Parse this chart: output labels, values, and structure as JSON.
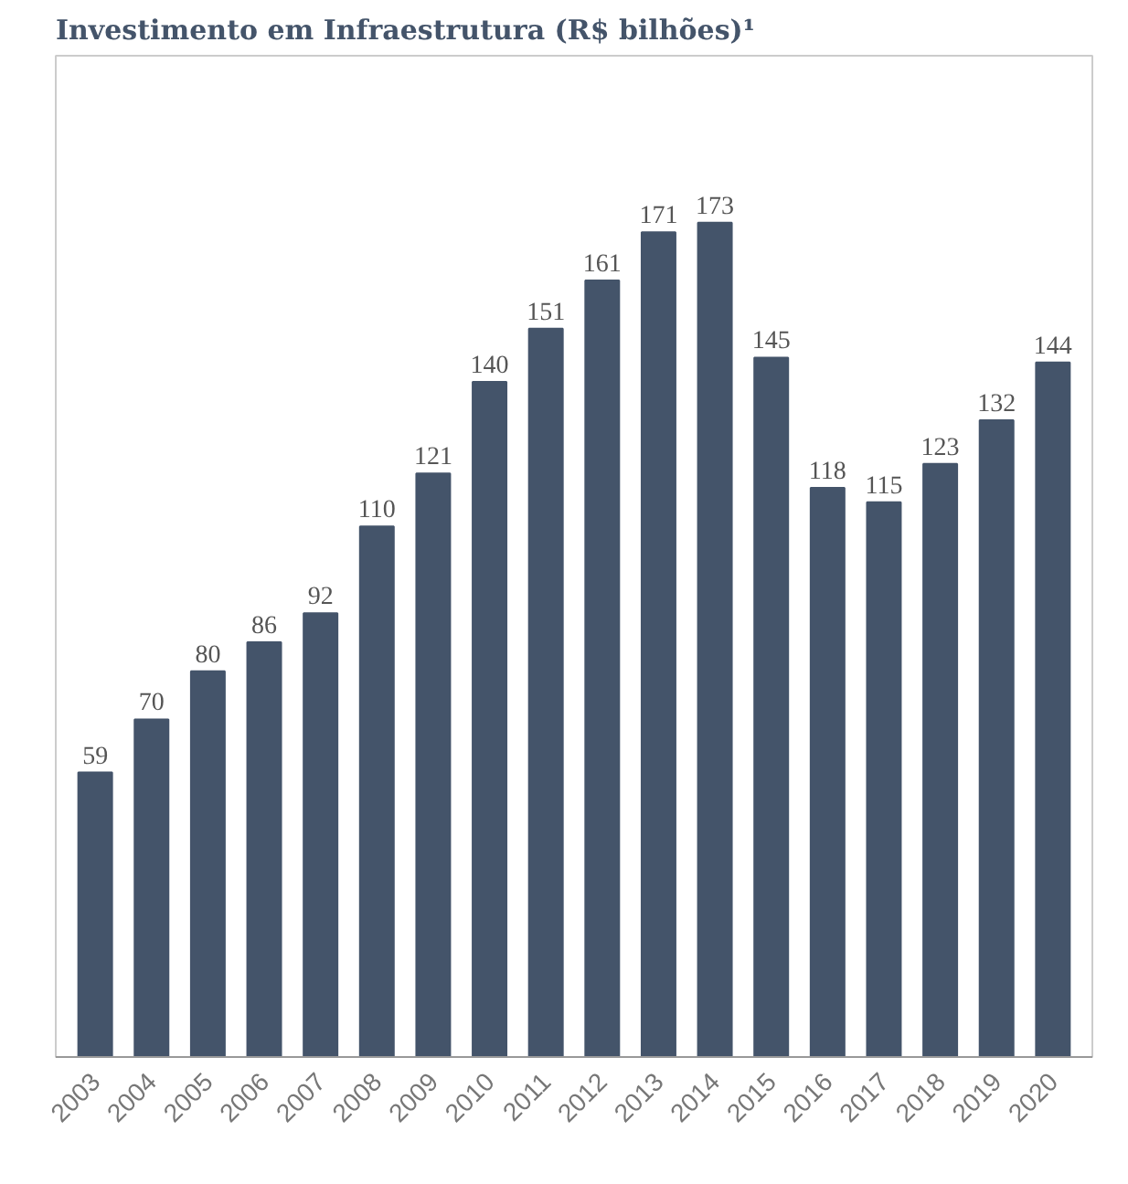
{
  "chart_data": {
    "type": "bar",
    "title": "Investimento em Infraestrutura (R$ bilhões)¹",
    "categories": [
      "2003",
      "2004",
      "2005",
      "2006",
      "2007",
      "2008",
      "2009",
      "2010",
      "2011",
      "2012",
      "2013",
      "2014",
      "2015",
      "2016",
      "2017",
      "2018",
      "2019",
      "2020"
    ],
    "values": [
      59,
      70,
      80,
      86,
      92,
      110,
      121,
      140,
      151,
      161,
      171,
      173,
      145,
      118,
      115,
      123,
      132,
      144
    ],
    "color": "#44546a",
    "data_labels": true,
    "grid": false
  }
}
